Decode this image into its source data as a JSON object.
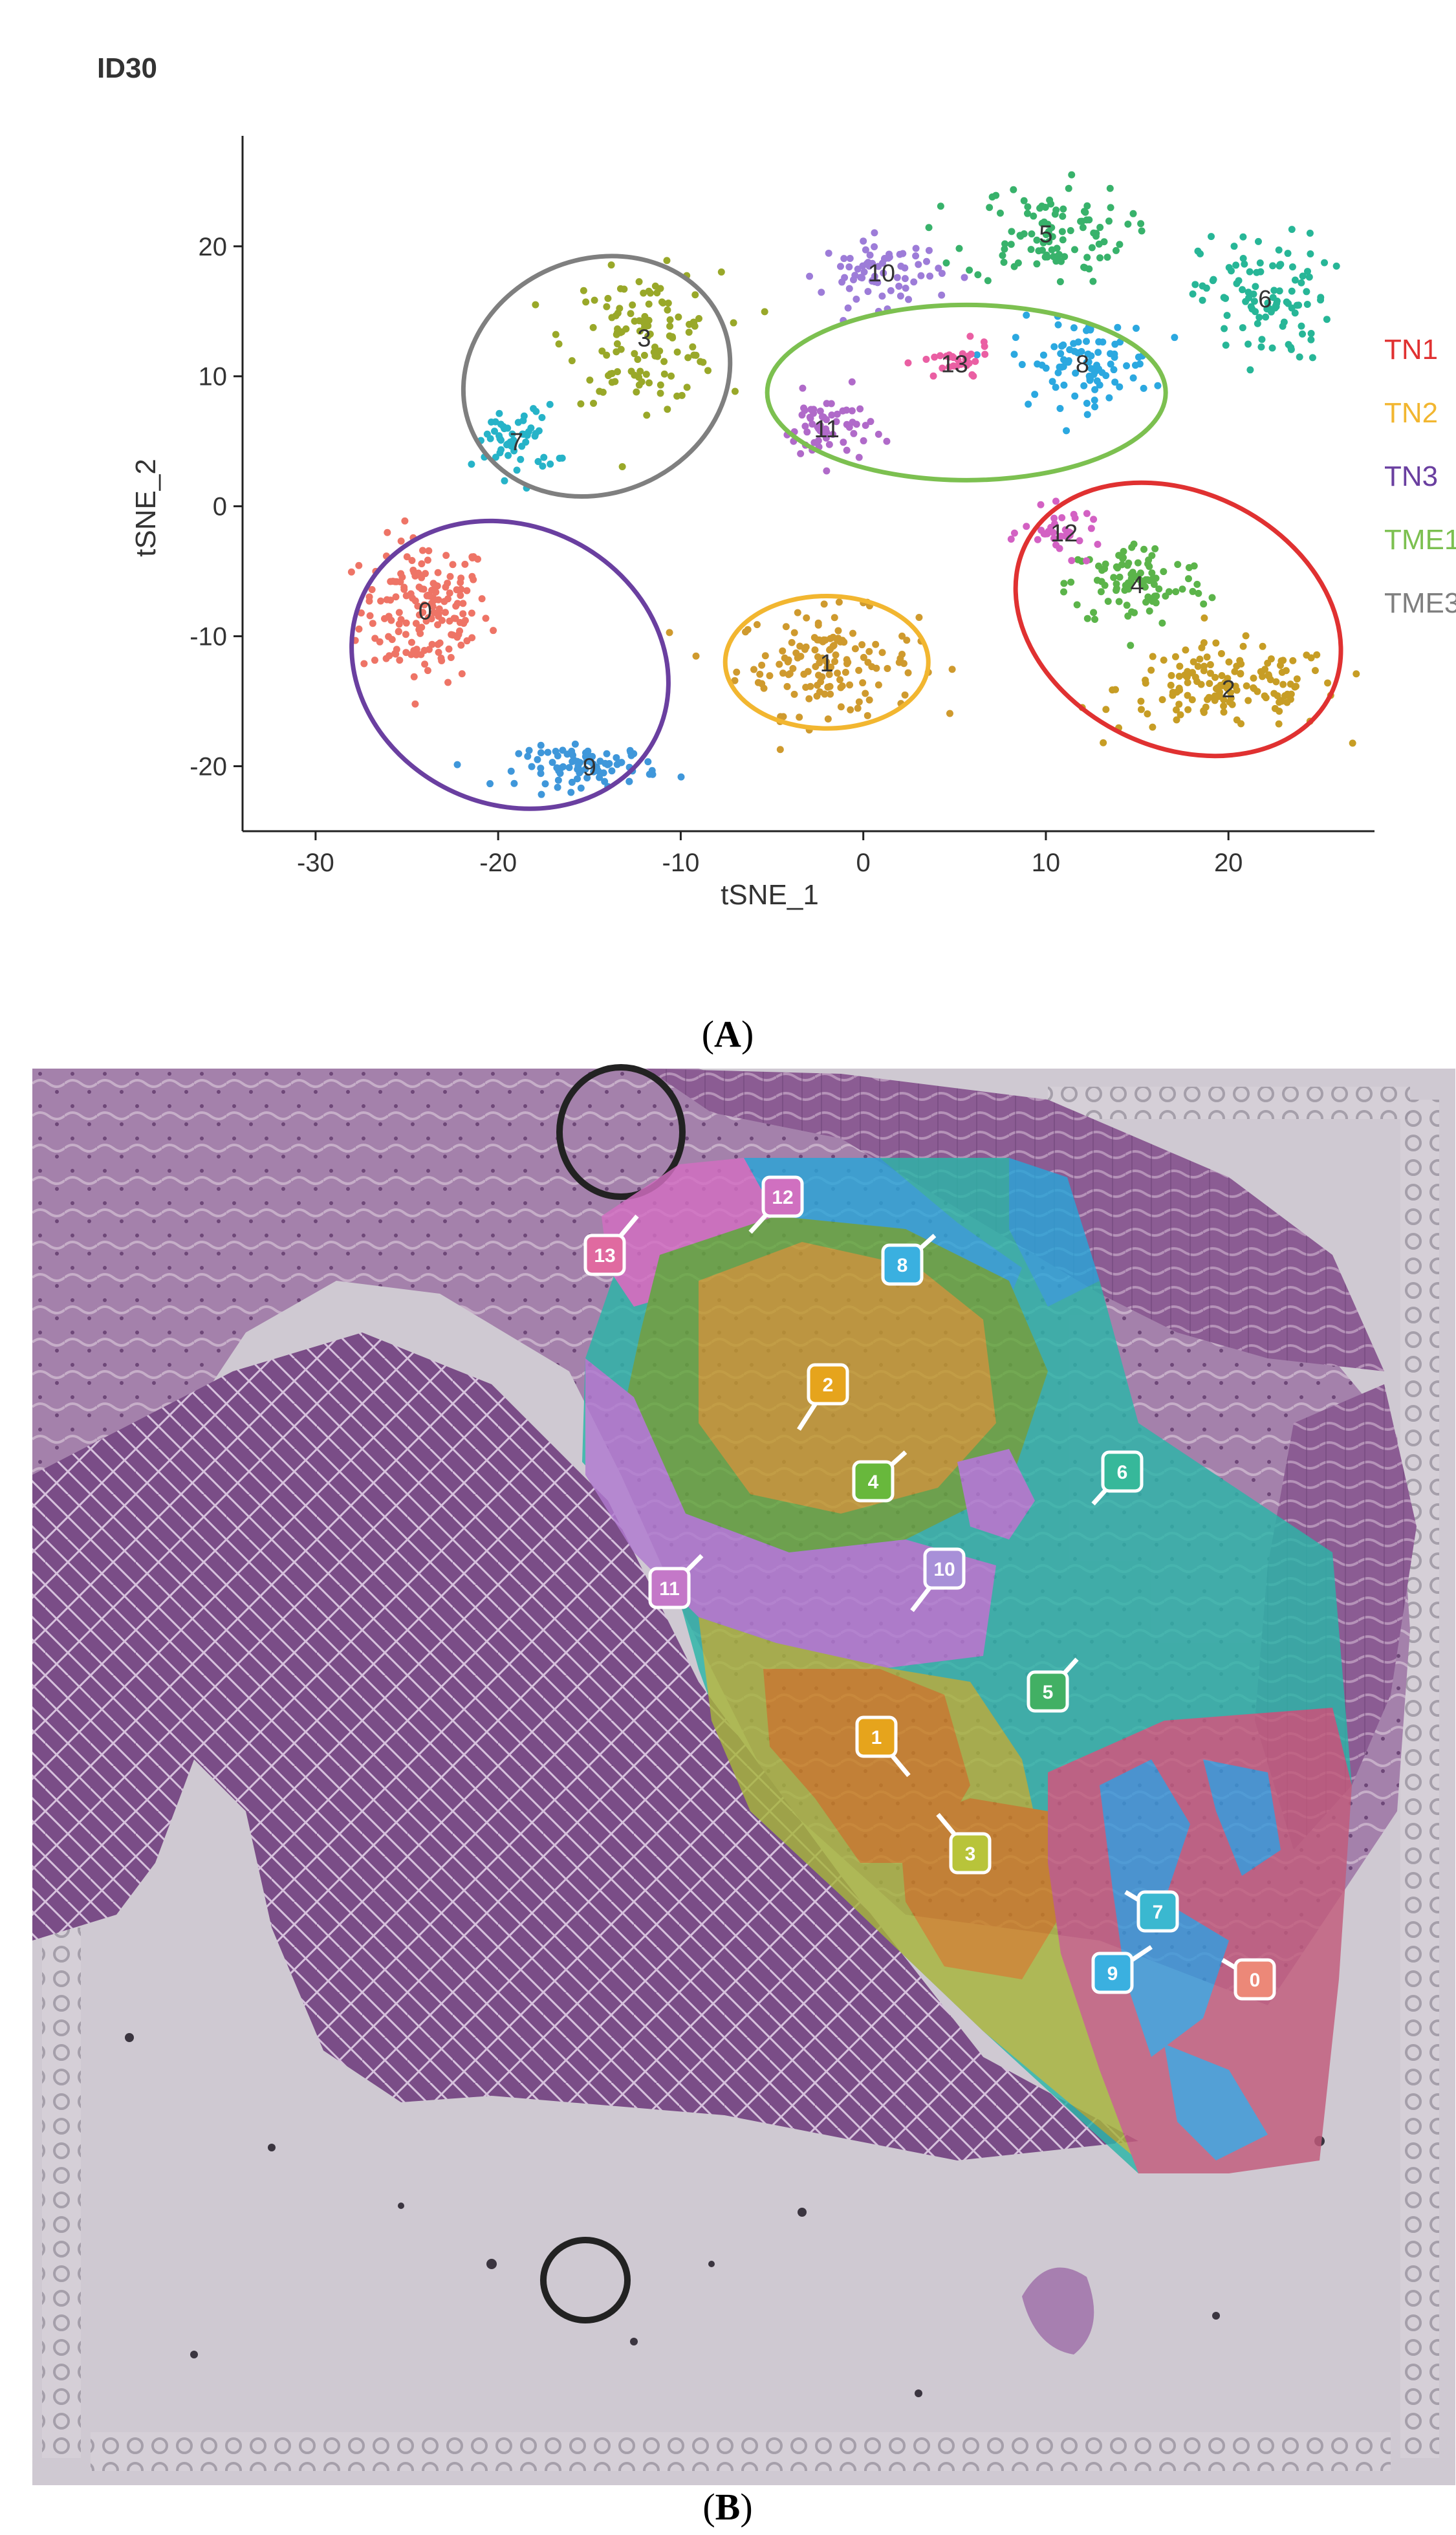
{
  "panel_a": {
    "label": "A",
    "chart_data": {
      "type": "scatter",
      "title": "ID30",
      "xlabel": "tSNE_1",
      "ylabel": "tSNE_2",
      "xlim": [
        -34,
        28
      ],
      "ylim": [
        -25,
        28.5
      ],
      "xticks": [
        -30,
        -20,
        -10,
        0,
        10,
        20
      ],
      "yticks": [
        -20,
        -10,
        0,
        10,
        20
      ],
      "grid": false,
      "legend_position": "right",
      "clusters": [
        {
          "id": "0",
          "center": [
            -24,
            -8
          ],
          "spread": [
            3.2,
            5
          ],
          "n": 170,
          "color": "#ee7466"
        },
        {
          "id": "1",
          "center": [
            -2,
            -12
          ],
          "spread": [
            4.5,
            3.6
          ],
          "n": 140,
          "color": "#cf9a2e"
        },
        {
          "id": "2",
          "center": [
            20,
            -14
          ],
          "spread": [
            5.5,
            3
          ],
          "n": 150,
          "color": "#c79d25"
        },
        {
          "id": "3",
          "center": [
            -12,
            13
          ],
          "spread": [
            3.8,
            4.5
          ],
          "n": 120,
          "color": "#99a829"
        },
        {
          "id": "4",
          "center": [
            15,
            -6
          ],
          "spread": [
            3.5,
            3
          ],
          "n": 100,
          "color": "#5bb44a"
        },
        {
          "id": "5",
          "center": [
            10,
            21
          ],
          "spread": [
            4,
            3.5
          ],
          "n": 100,
          "color": "#38b26b"
        },
        {
          "id": "6",
          "center": [
            22,
            16
          ],
          "spread": [
            3.2,
            4.5
          ],
          "n": 100,
          "color": "#27b697"
        },
        {
          "id": "7",
          "center": [
            -19,
            5
          ],
          "spread": [
            2,
            2.5
          ],
          "n": 55,
          "color": "#26b3c8"
        },
        {
          "id": "8",
          "center": [
            12,
            11
          ],
          "spread": [
            3.5,
            3
          ],
          "n": 90,
          "color": "#2ba8e0"
        },
        {
          "id": "9",
          "center": [
            -15,
            -20
          ],
          "spread": [
            3.5,
            1.4
          ],
          "n": 90,
          "color": "#3f97da"
        },
        {
          "id": "10",
          "center": [
            1,
            18
          ],
          "spread": [
            3,
            2.3
          ],
          "n": 70,
          "color": "#9d7cd8"
        },
        {
          "id": "11",
          "center": [
            -2,
            6
          ],
          "spread": [
            2.2,
            2.5
          ],
          "n": 60,
          "color": "#b06ac9"
        },
        {
          "id": "12",
          "center": [
            11,
            -2
          ],
          "spread": [
            2,
            1.6
          ],
          "n": 35,
          "color": "#d361c3"
        },
        {
          "id": "13",
          "center": [
            5,
            11
          ],
          "spread": [
            1.8,
            1.3
          ],
          "n": 30,
          "color": "#ea5fa3"
        }
      ],
      "groups": [
        {
          "name": "TN1",
          "color": "#e03131",
          "clusters": [
            "2",
            "4",
            "12"
          ]
        },
        {
          "name": "TN2",
          "color": "#f2b630",
          "clusters": [
            "1"
          ]
        },
        {
          "name": "TN3",
          "color": "#6a3fa0",
          "clusters": [
            "0",
            "9"
          ]
        },
        {
          "name": "TME1",
          "color": "#7cc050",
          "clusters": [
            "8",
            "11",
            "13"
          ]
        },
        {
          "name": "TME3",
          "color": "#7f7f7f",
          "clusters": [
            "3",
            "7"
          ]
        }
      ]
    }
  },
  "panel_b": {
    "label": "B",
    "spot_labels": [
      {
        "text": "12",
        "color": "#d070c0"
      },
      {
        "text": "13",
        "color": "#e06aa0"
      },
      {
        "text": "8",
        "color": "#3ab0e0"
      },
      {
        "text": "2",
        "color": "#e6a41c"
      },
      {
        "text": "4",
        "color": "#68b83c"
      },
      {
        "text": "6",
        "color": "#36b89a"
      },
      {
        "text": "11",
        "color": "#c478c8"
      },
      {
        "text": "10",
        "color": "#a890d8"
      },
      {
        "text": "5",
        "color": "#42b064"
      },
      {
        "text": "1",
        "color": "#e6a41c"
      },
      {
        "text": "3",
        "color": "#b8c43a"
      },
      {
        "text": "7",
        "color": "#3ab8d0"
      },
      {
        "text": "9",
        "color": "#3ab0e0"
      },
      {
        "text": "0",
        "color": "#ec8878"
      }
    ]
  }
}
